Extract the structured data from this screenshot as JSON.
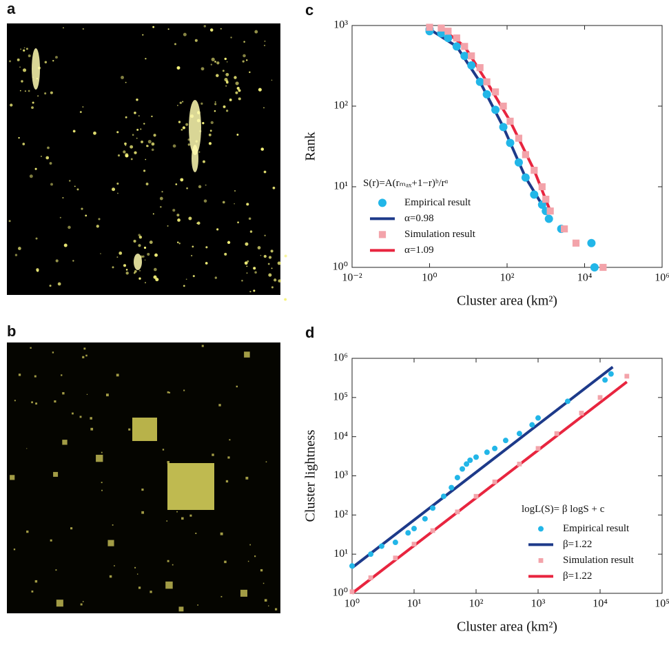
{
  "panel_labels": [
    "a",
    "b",
    "c",
    "d"
  ],
  "chart_data": [
    {
      "type": "scatter",
      "xlog": true,
      "ylog": true,
      "x_label": "Cluster area (km²)",
      "y_label": "Rank",
      "xlim": [
        0.01,
        1000000
      ],
      "ylim": [
        1,
        1000
      ],
      "xticks": [
        {
          "value": 0.01,
          "label": "10⁻²"
        },
        {
          "value": 1,
          "label": "10⁰"
        },
        {
          "value": 100,
          "label": "10²"
        },
        {
          "value": 10000,
          "label": "10⁴"
        },
        {
          "value": 1000000,
          "label": "10⁶"
        }
      ],
      "yticks": [
        {
          "value": 1,
          "label": "10⁰"
        },
        {
          "value": 10,
          "label": "10¹"
        },
        {
          "value": 100,
          "label": "10²"
        },
        {
          "value": 1000,
          "label": "10³"
        }
      ],
      "legend": "lower left",
      "legend_title": "S(r)=A(rₘₐₓ+1−r)ᵇ/rᵅ",
      "series": [
        {
          "name": "Empirical result",
          "color": "#22b6e8",
          "marker": "circle",
          "x": [
            1,
            1,
            2,
            3,
            5,
            8,
            12,
            20,
            30,
            50,
            80,
            120,
            200,
            300,
            500,
            800,
            1000,
            1200,
            2500,
            15000,
            18000
          ],
          "values": [
            900,
            850,
            800,
            700,
            550,
            420,
            320,
            200,
            140,
            90,
            55,
            35,
            20,
            13,
            8,
            6,
            5,
            4,
            3,
            2,
            1
          ]
        },
        {
          "name": "α=0.98",
          "color": "#1d3a8a",
          "marker": "line",
          "x": [
            1,
            5,
            20,
            80,
            300,
            1000
          ],
          "values": [
            900,
            550,
            200,
            55,
            13,
            5
          ]
        },
        {
          "name": "Simulation result",
          "color": "#f3a3aa",
          "marker": "square",
          "x": [
            1,
            2,
            3,
            5,
            8,
            12,
            20,
            30,
            50,
            80,
            120,
            200,
            300,
            500,
            800,
            1000,
            1300,
            3000,
            6000,
            30000
          ],
          "values": [
            950,
            930,
            850,
            700,
            550,
            420,
            300,
            200,
            150,
            100,
            65,
            40,
            25,
            16,
            10,
            7,
            5,
            3,
            2,
            1
          ]
        },
        {
          "name": "α=1.09",
          "color": "#e8253f",
          "marker": "line",
          "x": [
            2,
            8,
            30,
            120,
            500,
            1300
          ],
          "values": [
            930,
            550,
            200,
            65,
            16,
            5
          ]
        }
      ]
    },
    {
      "type": "scatter",
      "xlog": true,
      "ylog": true,
      "x_label": "Cluster area (km²)",
      "y_label": "Cluster lightness",
      "xlim": [
        1,
        100000
      ],
      "ylim": [
        1,
        1000000
      ],
      "xticks": [
        {
          "value": 1,
          "label": "10⁰"
        },
        {
          "value": 10,
          "label": "10¹"
        },
        {
          "value": 100,
          "label": "10²"
        },
        {
          "value": 1000,
          "label": "10³"
        },
        {
          "value": 10000,
          "label": "10⁴"
        },
        {
          "value": 100000,
          "label": "10⁵"
        }
      ],
      "yticks": [
        {
          "value": 1,
          "label": "10⁰"
        },
        {
          "value": 10,
          "label": "10¹"
        },
        {
          "value": 100,
          "label": "10²"
        },
        {
          "value": 1000,
          "label": "10³"
        },
        {
          "value": 10000,
          "label": "10⁴"
        },
        {
          "value": 100000,
          "label": "10⁵"
        },
        {
          "value": 1000000,
          "label": "10⁶"
        }
      ],
      "legend": "lower right",
      "legend_title": "logL(S)= β logS + c",
      "series": [
        {
          "name": "Empirical result",
          "color": "#22b6e8",
          "marker": "circle",
          "x": [
            1,
            2,
            3,
            5,
            8,
            10,
            15,
            20,
            30,
            40,
            50,
            60,
            70,
            80,
            100,
            150,
            200,
            300,
            500,
            800,
            1000,
            3000,
            12000,
            15000
          ],
          "values": [
            5,
            10,
            16,
            20,
            35,
            45,
            80,
            150,
            300,
            500,
            900,
            1500,
            2000,
            2500,
            3000,
            4000,
            5000,
            8000,
            12000,
            20000,
            30000,
            80000,
            280000,
            400000
          ]
        },
        {
          "name": "β=1.22",
          "color": "#1d3a8a",
          "marker": "line",
          "x": [
            1,
            16000
          ],
          "values": [
            4.5,
            600000
          ]
        },
        {
          "name": "Simulation result",
          "color": "#f3a3aa",
          "marker": "square",
          "x": [
            1,
            2,
            5,
            10,
            20,
            50,
            100,
            200,
            500,
            1000,
            2000,
            5000,
            10000,
            27000
          ],
          "values": [
            1.1,
            2.5,
            8,
            18,
            40,
            120,
            300,
            700,
            2000,
            5000,
            12000,
            40000,
            100000,
            350000
          ]
        },
        {
          "name": "β=1.22",
          "color": "#e8253f",
          "marker": "line",
          "x": [
            1,
            27000
          ],
          "values": [
            1,
            250000
          ]
        }
      ]
    }
  ]
}
